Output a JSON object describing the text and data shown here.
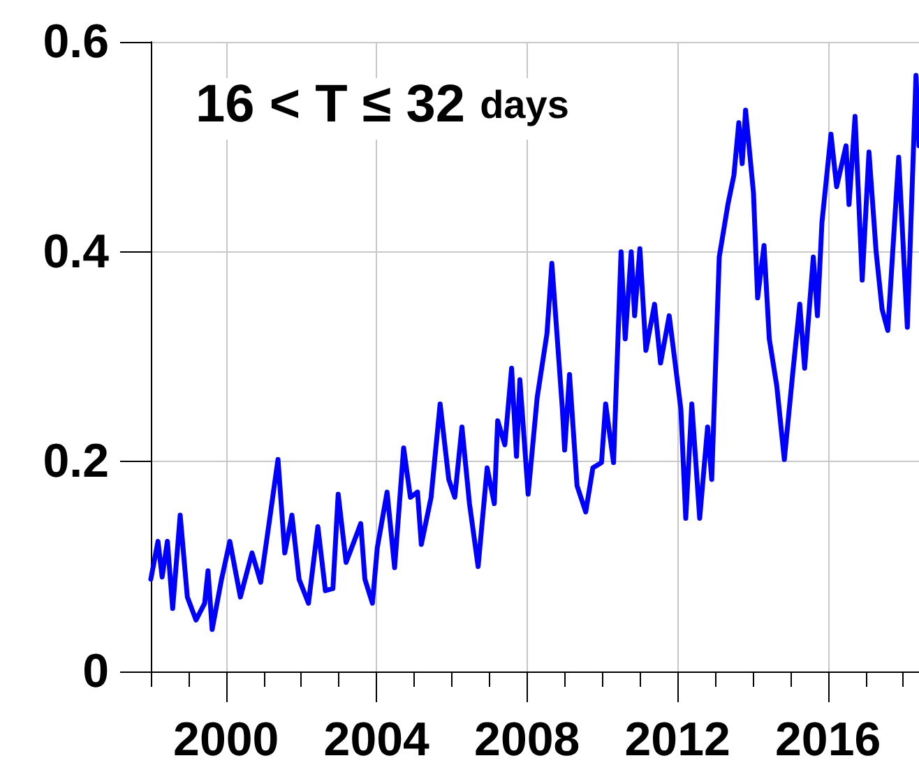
{
  "chart_data": {
    "type": "line",
    "title": "16 < T ≤ 32 days",
    "x": [
      1998.0,
      1998.19,
      1998.3,
      1998.44,
      1998.58,
      1998.78,
      1998.97,
      1999.2,
      1999.43,
      1999.52,
      1999.63,
      1999.88,
      2000.1,
      2000.38,
      2000.69,
      2000.92,
      2001.13,
      2001.38,
      2001.56,
      2001.75,
      2001.94,
      2002.19,
      2002.44,
      2002.64,
      2002.84,
      2002.98,
      2003.19,
      2003.34,
      2003.58,
      2003.69,
      2003.89,
      2004.02,
      2004.28,
      2004.48,
      2004.72,
      2004.9,
      2005.09,
      2005.19,
      2005.45,
      2005.69,
      2005.92,
      2006.08,
      2006.27,
      2006.47,
      2006.7,
      2006.94,
      2007.13,
      2007.22,
      2007.41,
      2007.59,
      2007.72,
      2007.81,
      2008.03,
      2008.27,
      2008.53,
      2008.66,
      2008.94,
      2009.0,
      2009.13,
      2009.33,
      2009.56,
      2009.75,
      2009.98,
      2010.09,
      2010.3,
      2010.5,
      2010.61,
      2010.77,
      2010.86,
      2011.0,
      2011.16,
      2011.39,
      2011.55,
      2011.78,
      2012.09,
      2012.22,
      2012.38,
      2012.59,
      2012.8,
      2012.91,
      2013.11,
      2013.34,
      2013.5,
      2013.63,
      2013.72,
      2013.81,
      2014.02,
      2014.13,
      2014.3,
      2014.44,
      2014.64,
      2014.84,
      2015.06,
      2015.25,
      2015.38,
      2015.61,
      2015.72,
      2015.84,
      2016.08,
      2016.23,
      2016.48,
      2016.56,
      2016.72,
      2016.91,
      2017.09,
      2017.28,
      2017.44,
      2017.59,
      2017.88,
      2018.11,
      2018.34,
      2018.42
    ],
    "series": [
      {
        "color": "#0000ff",
        "values": [
          0.088,
          0.124,
          0.09,
          0.124,
          0.06,
          0.149,
          0.071,
          0.049,
          0.065,
          0.096,
          0.04,
          0.088,
          0.124,
          0.071,
          0.113,
          0.085,
          0.138,
          0.202,
          0.113,
          0.149,
          0.088,
          0.065,
          0.138,
          0.077,
          0.079,
          0.169,
          0.104,
          0.118,
          0.141,
          0.088,
          0.065,
          0.118,
          0.171,
          0.099,
          0.213,
          0.166,
          0.171,
          0.121,
          0.166,
          0.255,
          0.183,
          0.166,
          0.233,
          0.16,
          0.1,
          0.194,
          0.16,
          0.239,
          0.216,
          0.289,
          0.205,
          0.278,
          0.169,
          0.261,
          0.322,
          0.389,
          0.25,
          0.211,
          0.283,
          0.177,
          0.152,
          0.194,
          0.199,
          0.255,
          0.199,
          0.4,
          0.317,
          0.4,
          0.339,
          0.403,
          0.306,
          0.35,
          0.294,
          0.339,
          0.25,
          0.146,
          0.255,
          0.146,
          0.233,
          0.183,
          0.395,
          0.445,
          0.473,
          0.523,
          0.484,
          0.535,
          0.456,
          0.356,
          0.406,
          0.317,
          0.272,
          0.202,
          0.283,
          0.35,
          0.289,
          0.395,
          0.339,
          0.428,
          0.512,
          0.462,
          0.501,
          0.445,
          0.529,
          0.373,
          0.495,
          0.4,
          0.345,
          0.325,
          0.49,
          0.328,
          0.568,
          0.501
        ]
      }
    ],
    "xlim": [
      1998,
      2018.42
    ],
    "xticks": [
      {
        "value": 1998,
        "label": null
      },
      {
        "value": 1999,
        "label": null
      },
      2000,
      {
        "value": 2001,
        "label": null
      },
      {
        "value": 2002,
        "label": null
      },
      {
        "value": 2003,
        "label": null
      },
      2004,
      {
        "value": 2005,
        "label": null
      },
      {
        "value": 2006,
        "label": null
      },
      {
        "value": 2007,
        "label": null
      },
      2008,
      {
        "value": 2009,
        "label": null
      },
      {
        "value": 2010,
        "label": null
      },
      {
        "value": 2011,
        "label": null
      },
      2012,
      {
        "value": 2013,
        "label": null
      },
      {
        "value": 2014,
        "label": null
      },
      {
        "value": 2015,
        "label": null
      },
      2016,
      {
        "value": 2017,
        "label": null
      },
      {
        "value": 2018,
        "label": null
      }
    ],
    "ylim": [
      0,
      0.6
    ],
    "yticks": [
      0,
      0.2,
      0.4,
      0.6
    ],
    "grid": true,
    "marker": "none",
    "line_style": "solid"
  }
}
